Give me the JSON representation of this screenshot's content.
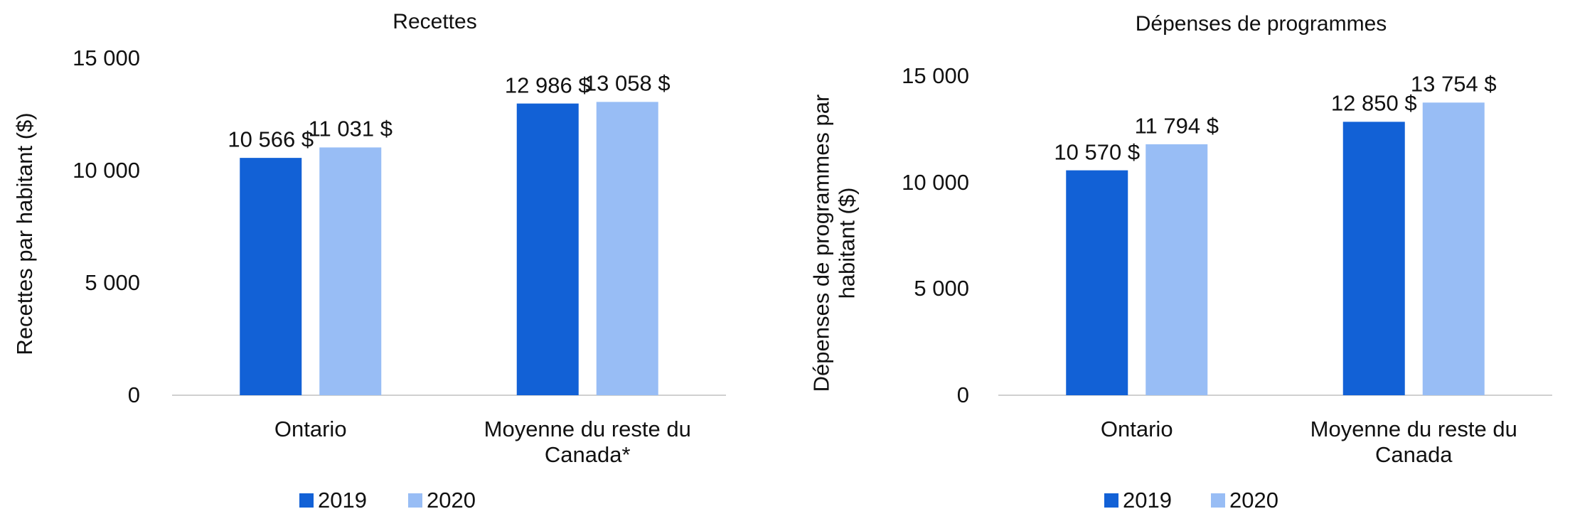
{
  "chart_data": [
    {
      "type": "bar",
      "title": "Recettes",
      "y_label": "Recettes par habitant ($)",
      "categories": [
        "Ontario",
        "Moyenne du reste du Canada*"
      ],
      "series": [
        {
          "name": "2019",
          "color": "#1261d6",
          "values": [
            10566,
            12986
          ],
          "value_labels": [
            "10 566 $",
            "12 986 $"
          ]
        },
        {
          "name": "2020",
          "color": "#98bdf5",
          "values": [
            11031,
            13058
          ],
          "value_labels": [
            "11 031 $",
            "13 058 $"
          ]
        }
      ],
      "ylim": [
        0,
        15000
      ],
      "yticks": [
        0,
        {
          "value": 5000,
          "label": "5 000"
        },
        {
          "value": 10000,
          "label": "10 000"
        },
        {
          "value": 15000,
          "label": "15 000"
        }
      ],
      "legend": "bottom"
    },
    {
      "type": "bar",
      "title": "Dépenses de programmes",
      "y_label": "Dépenses de programmes par habitant ($)",
      "categories": [
        "Ontario",
        "Moyenne du reste du Canada"
      ],
      "series": [
        {
          "name": "2019",
          "color": "#1261d6",
          "values": [
            10570,
            12850
          ],
          "value_labels": [
            "10 570 $",
            "12 850 $"
          ]
        },
        {
          "name": "2020",
          "color": "#98bdf5",
          "values": [
            11794,
            13754
          ],
          "value_labels": [
            "11 794 $",
            "13 754 $"
          ]
        }
      ],
      "ylim": [
        0,
        15000
      ],
      "yticks": [
        0,
        {
          "value": 5000,
          "label": "5 000"
        },
        {
          "value": 10000,
          "label": "10 000"
        },
        {
          "value": 15000,
          "label": "15 000"
        }
      ],
      "legend": "bottom"
    }
  ]
}
